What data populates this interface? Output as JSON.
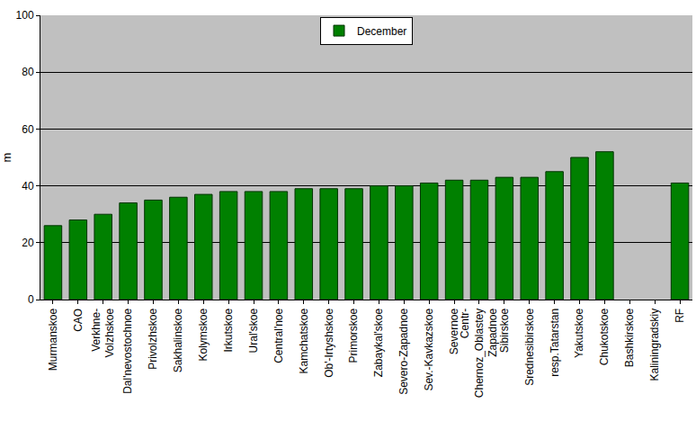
{
  "chart_data": {
    "type": "bar",
    "y_label": "m",
    "categories": [
      "Murmanskoe",
      "CAO",
      "Verkhne-\nVolzhskoe",
      "Dal'nevostochnoe",
      "Privolzhskoe",
      "Sakhalinskoe",
      "Kolymskoe",
      "Irkutskoe",
      "Ural'skoe",
      "Central'noe",
      "Kamchatskoe",
      "Ob'-Irtyshskoe",
      "Primorskoe",
      "Zabaykal'skoe",
      "Severo-Zapadnoe",
      "Sev.-Kavkazskoe",
      "Severnoe",
      "Centr-\nChernoz_Oblastey\nZapadnoe",
      "Sibirskoe",
      "Srednesibirskoe",
      "resp.Tatarstan",
      "Yakutskoe",
      "Chukotskoe",
      "Bashkirskoe",
      "Kaliningradskiy",
      "RF"
    ],
    "series": [
      {
        "name": "December",
        "color": "#008000",
        "values": [
          26,
          28,
          30,
          34,
          35,
          36,
          37,
          38,
          38,
          38,
          39,
          39,
          39,
          40,
          40,
          41,
          42,
          42,
          43,
          43,
          45,
          50,
          52,
          null,
          null,
          41
        ]
      }
    ],
    "ylim": [
      0,
      100
    ],
    "yticks": [
      0,
      20,
      40,
      60,
      80,
      100
    ],
    "grid": true,
    "legend": "top"
  }
}
